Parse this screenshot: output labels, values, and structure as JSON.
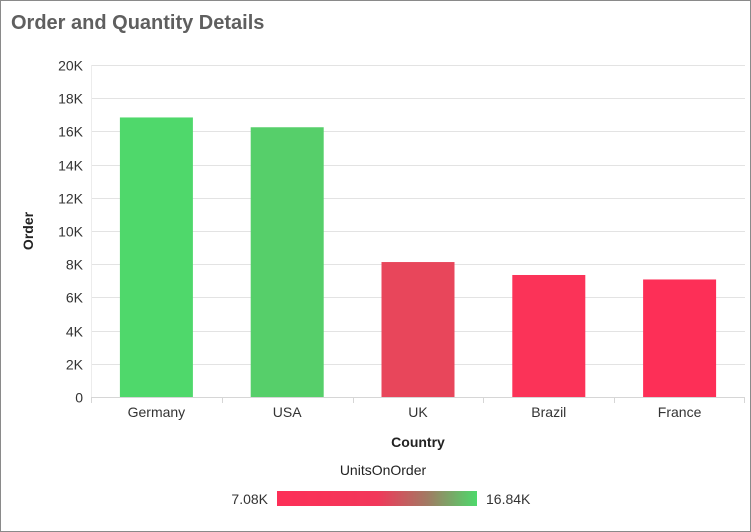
{
  "widget": {
    "title": "Order and Quantity Details"
  },
  "chart_data": {
    "type": "bar",
    "title": "Order and Quantity Details",
    "xlabel": "Country",
    "ylabel": "Order",
    "categories": [
      "Germany",
      "USA",
      "UK",
      "Brazil",
      "France"
    ],
    "values": [
      16840,
      16250,
      8130,
      7350,
      7080
    ],
    "ylim": [
      0,
      20000
    ],
    "yticks": [
      0,
      2000,
      4000,
      6000,
      8000,
      10000,
      12000,
      14000,
      16000,
      18000,
      20000
    ],
    "ytick_labels": [
      "0",
      "2K",
      "4K",
      "6K",
      "8K",
      "10K",
      "12K",
      "14K",
      "16K",
      "18K",
      "20K"
    ],
    "grid": true,
    "color_scale": {
      "measure": "UnitsOnOrder",
      "min_label": "7.08K",
      "max_label": "16.84K",
      "min": 7080,
      "max": 16840,
      "min_color": "#fd2f57",
      "max_color": "#4dd96b"
    },
    "bar_colors": [
      "#4fd86b",
      "#56cf6a",
      "#e8465b",
      "#fb3358",
      "#fd2f57"
    ],
    "legend_position": "bottom"
  }
}
